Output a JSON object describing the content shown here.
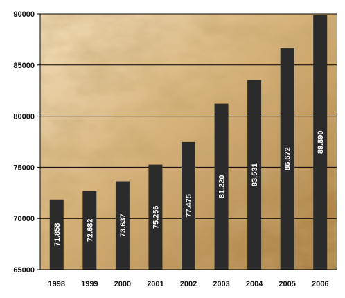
{
  "chart_data": {
    "type": "bar",
    "title": "",
    "xlabel": "",
    "ylabel": "",
    "categories": [
      "1998",
      "1999",
      "2000",
      "2001",
      "2002",
      "2003",
      "2004",
      "2005",
      "2006"
    ],
    "values": [
      71858,
      72682,
      73637,
      75256,
      77475,
      81220,
      83531,
      86672,
      89890
    ],
    "data_labels": [
      "71.858",
      "72.682",
      "73.637",
      "75.256",
      "77.475",
      "81.220",
      "83.531",
      "86.672",
      "89.890"
    ],
    "ylim": [
      65000,
      90000
    ],
    "yticks": [
      65000,
      70000,
      75000,
      80000,
      85000,
      90000
    ],
    "ytick_labels": [
      "65000",
      "70000",
      "75000",
      "80000",
      "85000",
      "90000"
    ],
    "grid": true,
    "legend": "none",
    "colors": {
      "bar": "#2b2b2b",
      "bar_label": "#ffffff",
      "grid": "#000000",
      "background_light": "#f1ddb8",
      "background_mid": "#d6b27a",
      "background_dark": "#a57a3e"
    }
  }
}
